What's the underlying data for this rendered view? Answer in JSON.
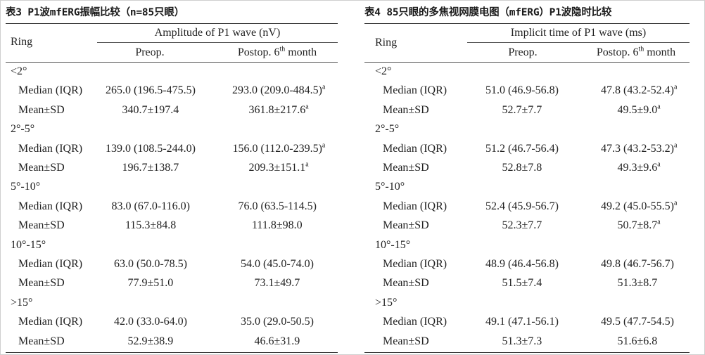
{
  "tables": [
    {
      "caption": "表3 P1波mfERG振幅比较（n=85只眼）",
      "group_header": "Amplitude of P1 wave (nV)",
      "ring_header": "Ring",
      "col1_header": "Preop.",
      "col2_header_prefix": "Postop. 6",
      "col2_header_sup": "th",
      "col2_header_suffix": " month",
      "rings": [
        {
          "label": "<2°",
          "rows": [
            {
              "stat": "Median (IQR)",
              "preop": "265.0 (196.5-475.5)",
              "postop": "293.0 (209.0-484.5)",
              "sup": "a"
            },
            {
              "stat": "Mean±SD",
              "preop": "340.7±197.4",
              "postop": "361.8±217.6",
              "sup": "a"
            }
          ]
        },
        {
          "label": "2°-5°",
          "rows": [
            {
              "stat": "Median (IQR)",
              "preop": "139.0 (108.5-244.0)",
              "postop": "156.0 (112.0-239.5)",
              "sup": "a"
            },
            {
              "stat": "Mean±SD",
              "preop": "196.7±138.7",
              "postop": "209.3±151.1",
              "sup": "a"
            }
          ]
        },
        {
          "label": "5°-10°",
          "rows": [
            {
              "stat": "Median (IQR)",
              "preop": "83.0 (67.0-116.0)",
              "postop": "76.0 (63.5-114.5)",
              "sup": ""
            },
            {
              "stat": "Mean±SD",
              "preop": "115.3±84.8",
              "postop": "111.8±98.0",
              "sup": ""
            }
          ]
        },
        {
          "label": "10°-15°",
          "rows": [
            {
              "stat": "Median (IQR)",
              "preop": "63.0 (50.0-78.5)",
              "postop": "54.0 (45.0-74.0)",
              "sup": ""
            },
            {
              "stat": "Mean±SD",
              "preop": "77.9±51.0",
              "postop": "73.1±49.7",
              "sup": ""
            }
          ]
        },
        {
          "label": ">15°",
          "rows": [
            {
              "stat": "Median (IQR)",
              "preop": "42.0 (33.0-64.0)",
              "postop": "35.0 (29.0-50.5)",
              "sup": ""
            },
            {
              "stat": "Mean±SD",
              "preop": "52.9±38.9",
              "postop": "46.6±31.9",
              "sup": ""
            }
          ]
        }
      ]
    },
    {
      "caption": "表4 85只眼的多焦视网膜电图（mfERG）P1波隐时比较",
      "group_header": "Implicit time of P1 wave (ms)",
      "ring_header": "Ring",
      "col1_header": "Preop.",
      "col2_header_prefix": "Postop. 6",
      "col2_header_sup": "th",
      "col2_header_suffix": " month",
      "rings": [
        {
          "label": "<2°",
          "rows": [
            {
              "stat": "Median (IQR)",
              "preop": "51.0 (46.9-56.8)",
              "postop": "47.8 (43.2-52.4)",
              "sup": "a"
            },
            {
              "stat": "Mean±SD",
              "preop": "52.7±7.7",
              "postop": "49.5±9.0",
              "sup": "a"
            }
          ]
        },
        {
          "label": "2°-5°",
          "rows": [
            {
              "stat": "Median (IQR)",
              "preop": "51.2 (46.7-56.4)",
              "postop": "47.3 (43.2-53.2)",
              "sup": "a"
            },
            {
              "stat": "Mean±SD",
              "preop": "52.8±7.8",
              "postop": "49.3±9.6",
              "sup": "a"
            }
          ]
        },
        {
          "label": "5°-10°",
          "rows": [
            {
              "stat": "Median (IQR)",
              "preop": "52.4 (45.9-56.7)",
              "postop": "49.2 (45.0-55.5)",
              "sup": "a"
            },
            {
              "stat": "Mean±SD",
              "preop": "52.3±7.7",
              "postop": "50.7±8.7",
              "sup": "a"
            }
          ]
        },
        {
          "label": "10°-15°",
          "rows": [
            {
              "stat": "Median (IQR)",
              "preop": "48.9 (46.4-56.8)",
              "postop": "49.8 (46.7-56.7)",
              "sup": ""
            },
            {
              "stat": "Mean±SD",
              "preop": "51.5±7.4",
              "postop": "51.3±8.7",
              "sup": ""
            }
          ]
        },
        {
          "label": ">15°",
          "rows": [
            {
              "stat": "Median (IQR)",
              "preop": "49.1 (47.1-56.1)",
              "postop": "49.5 (47.7-54.5)",
              "sup": ""
            },
            {
              "stat": "Mean±SD",
              "preop": "51.3±7.3",
              "postop": "51.6±6.8",
              "sup": ""
            }
          ]
        }
      ]
    }
  ]
}
